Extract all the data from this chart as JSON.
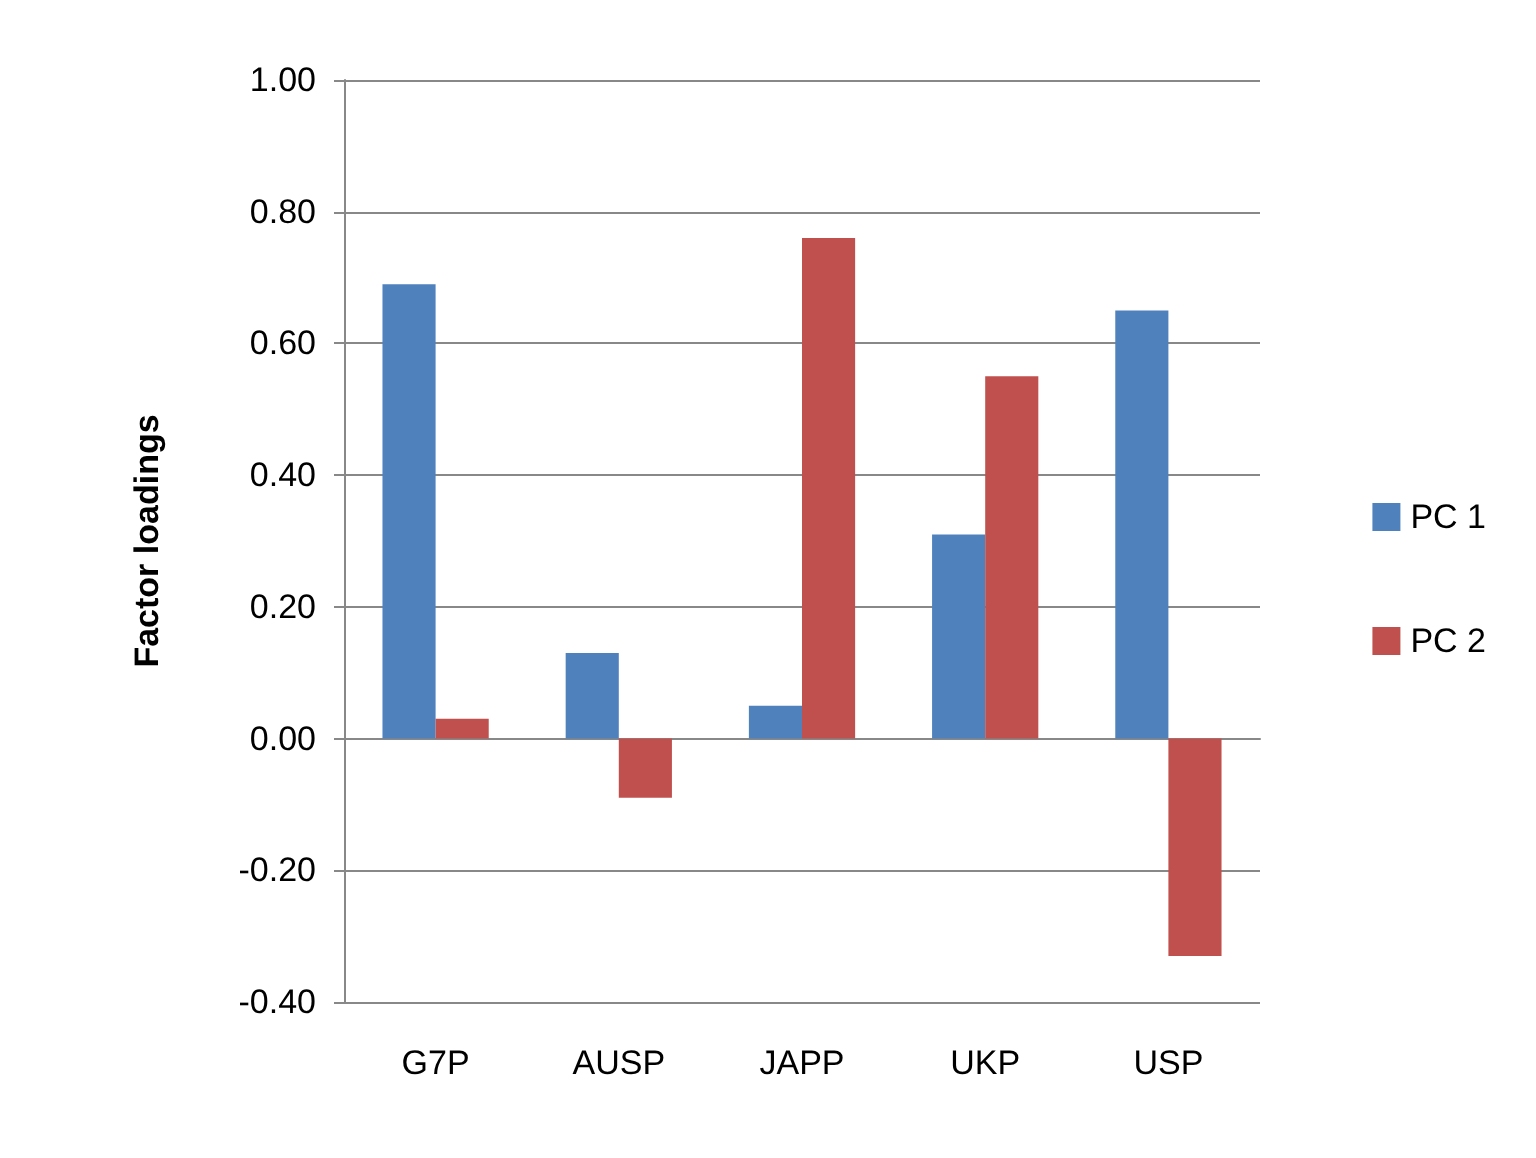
{
  "chart_data": {
    "type": "bar",
    "ylabel": "Factor loadings",
    "categories": [
      "G7P",
      "AUSP",
      "JAPP",
      "UKP",
      "USP"
    ],
    "series": [
      {
        "name": "PC 1",
        "color": "#4f81bd",
        "values": [
          0.69,
          0.13,
          0.05,
          0.31,
          0.65
        ]
      },
      {
        "name": "PC 2",
        "color": "#c0504d",
        "values": [
          0.03,
          -0.09,
          0.76,
          0.55,
          -0.33
        ]
      }
    ],
    "ylim": [
      -0.4,
      1.0
    ],
    "yticks": [
      {
        "value": -0.4,
        "label": "-0.40"
      },
      {
        "value": -0.2,
        "label": "-0.20"
      },
      {
        "value": 0,
        "label": "0.00"
      },
      {
        "value": 0.2,
        "label": "0.20"
      },
      {
        "value": 0.4,
        "label": "0.40"
      },
      {
        "value": 0.6,
        "label": "0.60"
      },
      {
        "value": 0.8,
        "label": "0.80"
      },
      {
        "value": 1.0,
        "label": "1.00"
      }
    ],
    "grid": "y",
    "legend": "right"
  }
}
